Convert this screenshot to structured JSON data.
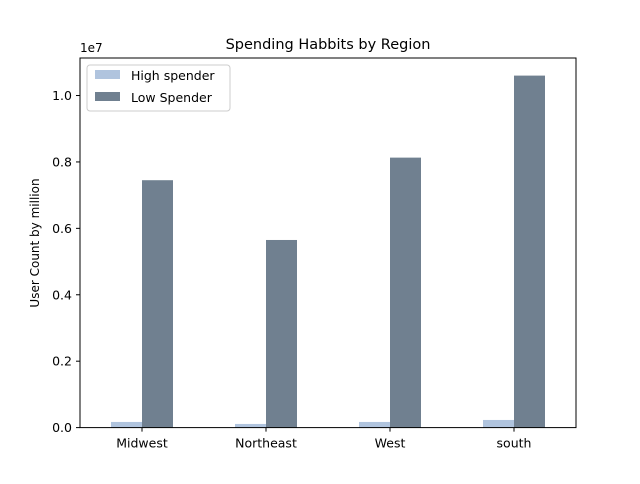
{
  "chart_data": {
    "type": "bar",
    "title": "Spending Habbits by Region",
    "xlabel": "",
    "ylabel": "User Count by million",
    "offset_label": "1e7",
    "categories": [
      "Midwest",
      "Northeast",
      "West",
      "south"
    ],
    "series": [
      {
        "name": "High spender",
        "color": "#b0c4de",
        "values": [
          170000,
          110000,
          170000,
          230000
        ]
      },
      {
        "name": "Low Spender",
        "color": "#708090",
        "values": [
          7450000,
          5650000,
          8130000,
          10600000
        ]
      }
    ],
    "ylim": [
      0,
      11130000
    ],
    "yticks": [
      0,
      2000000,
      4000000,
      6000000,
      8000000,
      10000000
    ],
    "ytick_labels": [
      "0.0",
      "0.2",
      "0.4",
      "0.6",
      "0.8",
      "1.0"
    ],
    "grid": false,
    "legend_position": "upper-left"
  }
}
